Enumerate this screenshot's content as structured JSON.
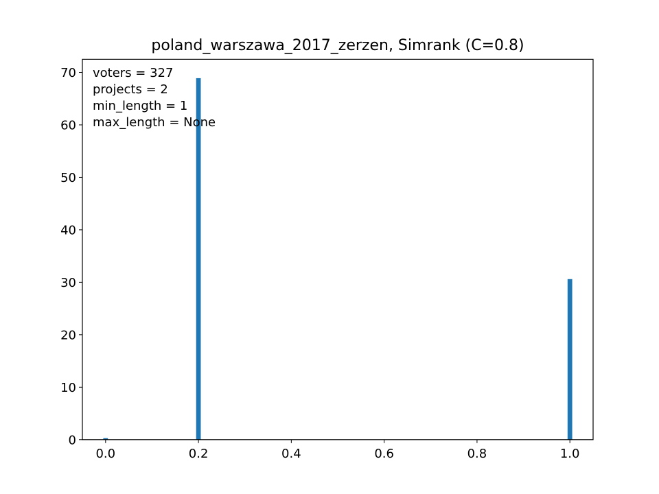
{
  "chart_data": {
    "type": "bar",
    "title": "poland_warszawa_2017_zerzen, Simrank (C=0.8)",
    "xlabel": "",
    "ylabel": "",
    "xlim": [
      -0.05,
      1.05
    ],
    "ylim": [
      0,
      72.5
    ],
    "xticks": [
      0.0,
      0.2,
      0.4,
      0.6,
      0.8,
      1.0
    ],
    "xtick_labels": [
      "0.0",
      "0.2",
      "0.4",
      "0.6",
      "0.8",
      "1.0"
    ],
    "yticks": [
      0,
      10,
      20,
      30,
      40,
      50,
      60,
      70
    ],
    "ytick_labels": [
      "0",
      "10",
      "20",
      "30",
      "40",
      "50",
      "60",
      "70"
    ],
    "bin_width": 0.01,
    "bars": [
      {
        "x": 0.0,
        "value": 0.3
      },
      {
        "x": 0.2,
        "value": 68.9
      },
      {
        "x": 1.0,
        "value": 30.6
      }
    ],
    "color": "#1f77b4",
    "grid": false,
    "annotation_lines": [
      "voters = 327",
      "projects = 2",
      "min_length = 1",
      "max_length = None"
    ]
  }
}
